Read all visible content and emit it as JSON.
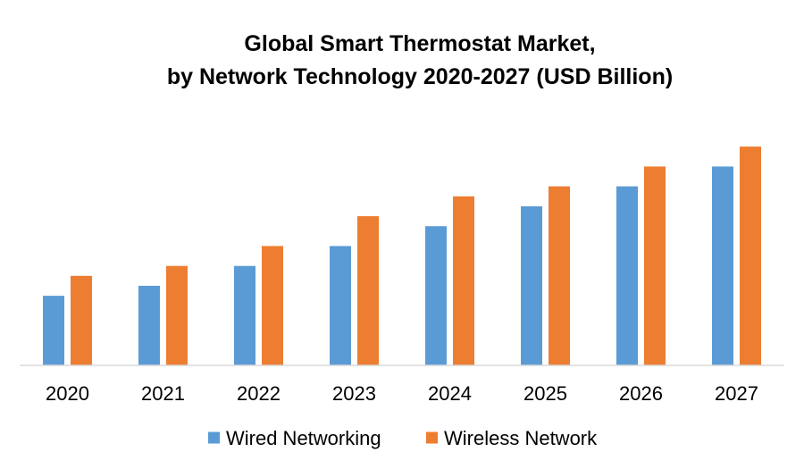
{
  "chart_data": {
    "type": "bar",
    "title_lines": [
      "Global Smart Thermostat Market,",
      "by Network Technology 2020-2027 (USD Billion)"
    ],
    "categories": [
      "2020",
      "2021",
      "2022",
      "2023",
      "2024",
      "2025",
      "2026",
      "2027"
    ],
    "series": [
      {
        "name": "Wired Networking",
        "color": "#5B9BD5",
        "values": [
          2.1,
          2.4,
          3.0,
          3.6,
          4.2,
          4.8,
          5.4,
          6.0
        ]
      },
      {
        "name": "Wireless Network",
        "color": "#ED7D31",
        "values": [
          2.7,
          3.0,
          3.6,
          4.5,
          5.1,
          5.4,
          6.0,
          6.6
        ]
      }
    ],
    "ylim": [
      0,
      7.6
    ],
    "grid": false,
    "legend": "bottom",
    "xlabel": "",
    "ylabel": ""
  }
}
